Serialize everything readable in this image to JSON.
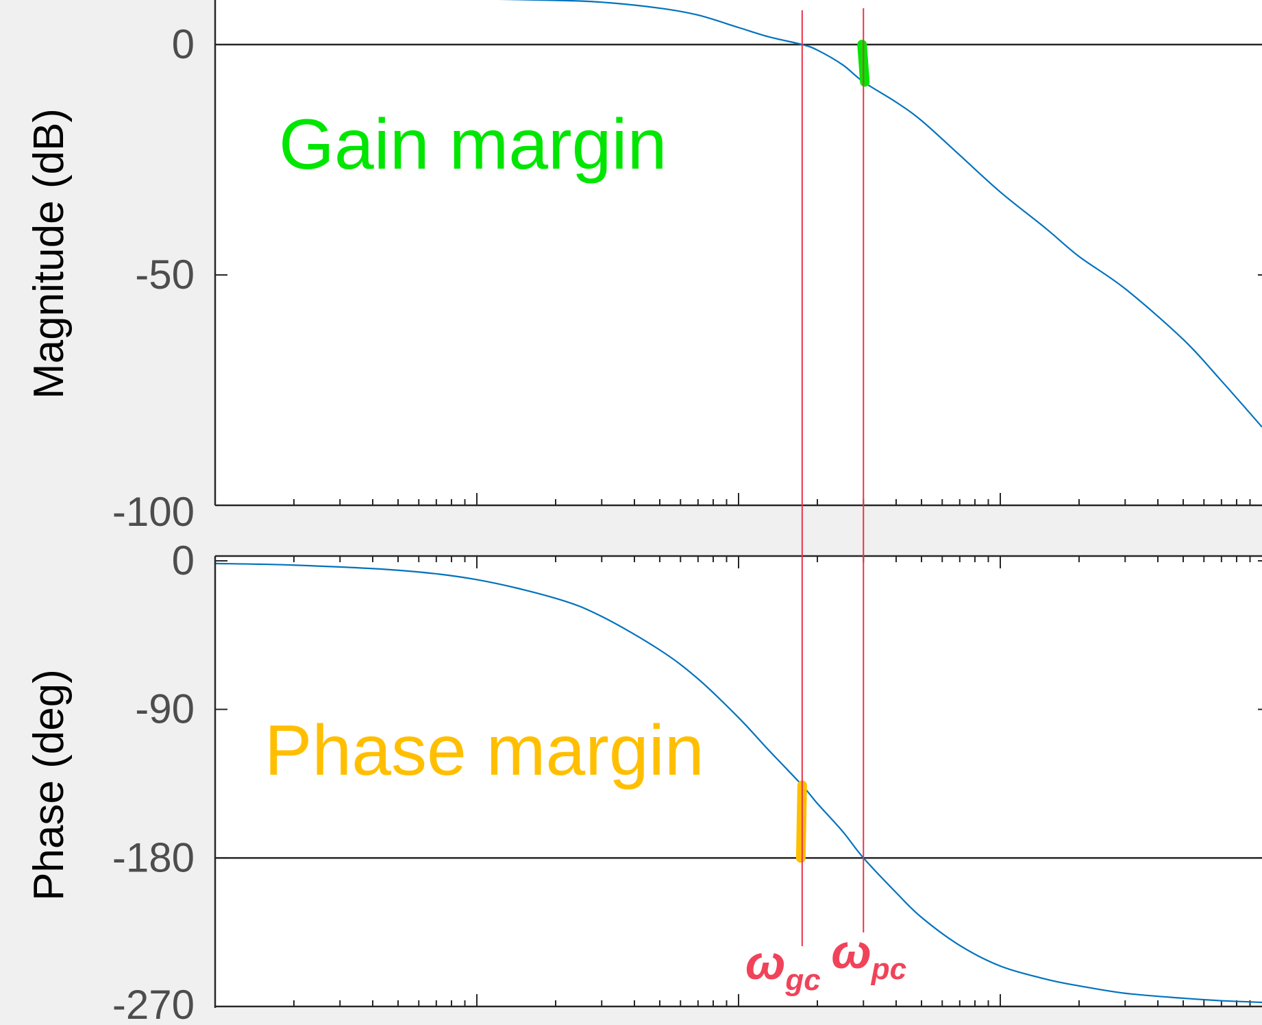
{
  "colors": {
    "background": "#f0f0f0",
    "plot_bg": "#ffffff",
    "axis": "#262626",
    "tick_label": "#4d4d4d",
    "curve": "#0072bd",
    "reference_line": "#262626",
    "marker_line": "#e8334a",
    "marker_label": "#f0435a",
    "gain_annotation": "#00e600",
    "phase_annotation": "#ffbf00"
  },
  "chart_data": [
    {
      "type": "line",
      "panel": "magnitude",
      "ylabel": "Magnitude (dB)",
      "xscale": "log",
      "xlim": [
        0.01,
        100
      ],
      "ylim": [
        -100,
        10
      ],
      "yticks": [
        0,
        -50,
        -100
      ],
      "ytick_labels": [
        "0",
        "-50",
        "-100"
      ],
      "reference_y": 0,
      "series": [
        {
          "x": [
            0.01,
            0.02,
            0.05,
            0.1,
            0.2,
            0.3,
            0.5,
            0.7,
            1,
            1.3,
            1.75,
            2,
            2.5,
            3,
            4,
            5,
            7,
            10,
            15,
            20,
            30,
            50,
            70,
            100
          ],
          "y": [
            10,
            10,
            10,
            9.9,
            9.6,
            9.2,
            7.9,
            6.4,
            3.7,
            1.7,
            0,
            -1.2,
            -4.4,
            -8.1,
            -12.5,
            -16.5,
            -24,
            -32,
            -40,
            -46,
            -53,
            -64,
            -73,
            -83
          ]
        }
      ],
      "annotation": "Gain margin"
    },
    {
      "type": "line",
      "panel": "phase",
      "ylabel": "Phase (deg)",
      "xscale": "log",
      "xlim": [
        0.01,
        100
      ],
      "ylim": [
        -270,
        0
      ],
      "yticks": [
        0,
        -90,
        -180,
        -270
      ],
      "ytick_labels": [
        "0",
        "-90",
        "-180",
        "-270"
      ],
      "reference_y": -180,
      "series": [
        {
          "x": [
            0.01,
            0.02,
            0.05,
            0.1,
            0.2,
            0.3,
            0.5,
            0.7,
            1,
            1.3,
            1.75,
            2,
            2.5,
            3,
            4,
            5,
            7,
            10,
            15,
            20,
            30,
            50,
            70,
            100
          ],
          "y": [
            -1.6,
            -2.6,
            -5.7,
            -11.4,
            -22.7,
            -33.7,
            -54,
            -71.5,
            -95,
            -114.5,
            -136,
            -147,
            -164,
            -180,
            -201,
            -216,
            -233,
            -245.5,
            -253.5,
            -257.5,
            -262,
            -265,
            -266.5,
            -267.5
          ]
        }
      ],
      "annotation": "Phase margin"
    }
  ],
  "markers": {
    "gain_crossover": {
      "x": 1.75,
      "label_main": "ω",
      "label_sub": "gc"
    },
    "phase_crossover": {
      "x": 3,
      "label_main": "ω",
      "label_sub": "pc"
    }
  },
  "margins": {
    "gain_margin_db": 8.1,
    "phase_margin_deg": 44
  }
}
